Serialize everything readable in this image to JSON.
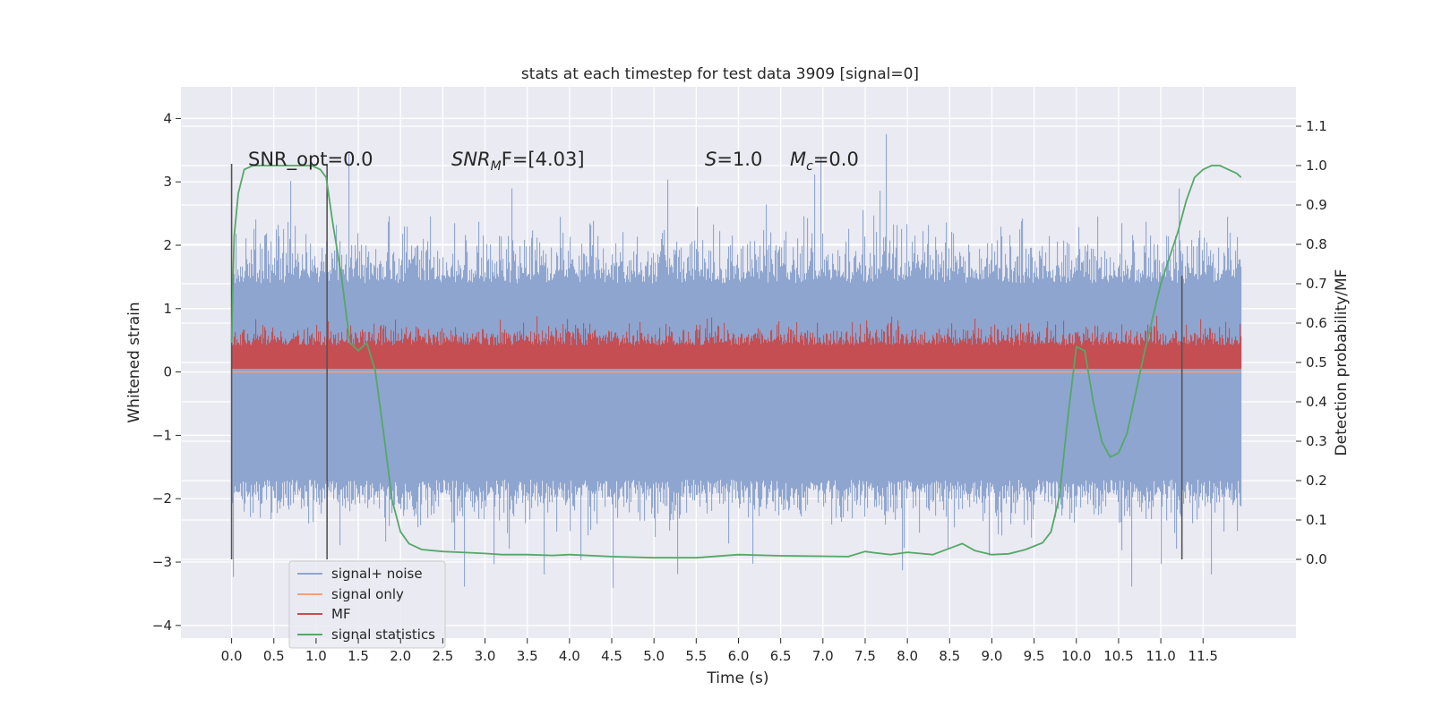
{
  "chart_data": {
    "type": "line",
    "title": "stats at each timestep for test data 3909 [signal=0]",
    "xlabel": "Time (s)",
    "ylabel_left": "Whitened strain",
    "ylabel_right": "Detection probability/MF",
    "xlim": [
      -0.6,
      12.6
    ],
    "ylim_left": [
      -4.2,
      4.5
    ],
    "ylim_right": [
      -0.2,
      1.2
    ],
    "xticks": [
      "0.0",
      "0.5",
      "1.0",
      "1.5",
      "2.0",
      "2.5",
      "3.0",
      "3.5",
      "4.0",
      "4.5",
      "5.0",
      "5.5",
      "6.0",
      "6.5",
      "7.0",
      "7.5",
      "8.0",
      "8.5",
      "9.0",
      "9.5",
      "10.0",
      "10.5",
      "11.0",
      "11.5"
    ],
    "yticks_left": [
      "4",
      "3",
      "2",
      "1",
      "0",
      "−1",
      "−2",
      "−3",
      "−4"
    ],
    "yticks_right": [
      "1.1",
      "1.0",
      "0.9",
      "0.8",
      "0.7",
      "0.6",
      "0.5",
      "0.4",
      "0.3",
      "0.2",
      "0.1",
      "0.0"
    ],
    "grid": true,
    "legend_position": "lower-left",
    "annotations": {
      "snr_opt": "SNR_opt=0.0",
      "snr_mf_main": "SNR",
      "snr_mf_sub": "M",
      "snr_mf_tail": "F=[4.03]",
      "s_sym": "S",
      "s_val": "=1.0",
      "mc_sym": "M",
      "mc_sub": "c",
      "mc_val": "=0.0"
    },
    "vertical_markers_x": [
      0.0,
      1.13,
      11.25
    ],
    "series": [
      {
        "name": "signal+ noise",
        "axis": "left",
        "color": "#8ea5cf",
        "style": "dense noise band",
        "x_range": [
          0.0,
          11.95
        ],
        "typical_range": [
          -1.7,
          1.4
        ],
        "extreme_range": [
          -3.8,
          4.1
        ]
      },
      {
        "name": "signal only",
        "axis": "left",
        "color": "#f0a07e",
        "x": [
          0.0,
          11.95
        ],
        "y": [
          0.0,
          0.0
        ]
      },
      {
        "name": "MF",
        "axis": "left",
        "color": "#c44e52",
        "style": "dense noise band",
        "x_range": [
          0.0,
          11.95
        ],
        "typical_range": [
          0.05,
          0.7
        ],
        "extreme_range": [
          0.0,
          1.0
        ]
      },
      {
        "name": "signal statistics",
        "axis": "right",
        "color": "#55a868",
        "x": [
          0.0,
          0.03,
          0.08,
          0.15,
          0.25,
          0.4,
          0.6,
          0.8,
          0.95,
          1.05,
          1.12,
          1.2,
          1.3,
          1.4,
          1.5,
          1.6,
          1.7,
          1.8,
          1.9,
          2.0,
          2.1,
          2.25,
          2.5,
          2.8,
          3.0,
          3.2,
          3.5,
          3.8,
          4.0,
          4.5,
          5.0,
          5.5,
          6.0,
          6.5,
          7.0,
          7.3,
          7.5,
          7.6,
          7.8,
          8.0,
          8.3,
          8.5,
          8.65,
          8.8,
          9.0,
          9.2,
          9.4,
          9.6,
          9.7,
          9.8,
          9.9,
          10.0,
          10.1,
          10.2,
          10.3,
          10.4,
          10.5,
          10.6,
          10.7,
          10.8,
          11.0,
          11.2,
          11.3,
          11.4,
          11.5,
          11.6,
          11.7,
          11.8,
          11.9,
          11.95
        ],
        "y": [
          0.55,
          0.82,
          0.93,
          0.99,
          1.0,
          1.0,
          1.0,
          1.0,
          1.0,
          0.99,
          0.97,
          0.85,
          0.72,
          0.55,
          0.53,
          0.55,
          0.48,
          0.32,
          0.15,
          0.07,
          0.04,
          0.025,
          0.02,
          0.017,
          0.015,
          0.012,
          0.012,
          0.01,
          0.012,
          0.007,
          0.004,
          0.004,
          0.012,
          0.009,
          0.008,
          0.007,
          0.02,
          0.017,
          0.012,
          0.018,
          0.012,
          0.028,
          0.04,
          0.022,
          0.012,
          0.014,
          0.025,
          0.042,
          0.07,
          0.16,
          0.36,
          0.54,
          0.53,
          0.4,
          0.3,
          0.26,
          0.27,
          0.32,
          0.42,
          0.52,
          0.7,
          0.83,
          0.91,
          0.97,
          0.99,
          1.0,
          1.0,
          0.99,
          0.98,
          0.97
        ]
      }
    ]
  }
}
